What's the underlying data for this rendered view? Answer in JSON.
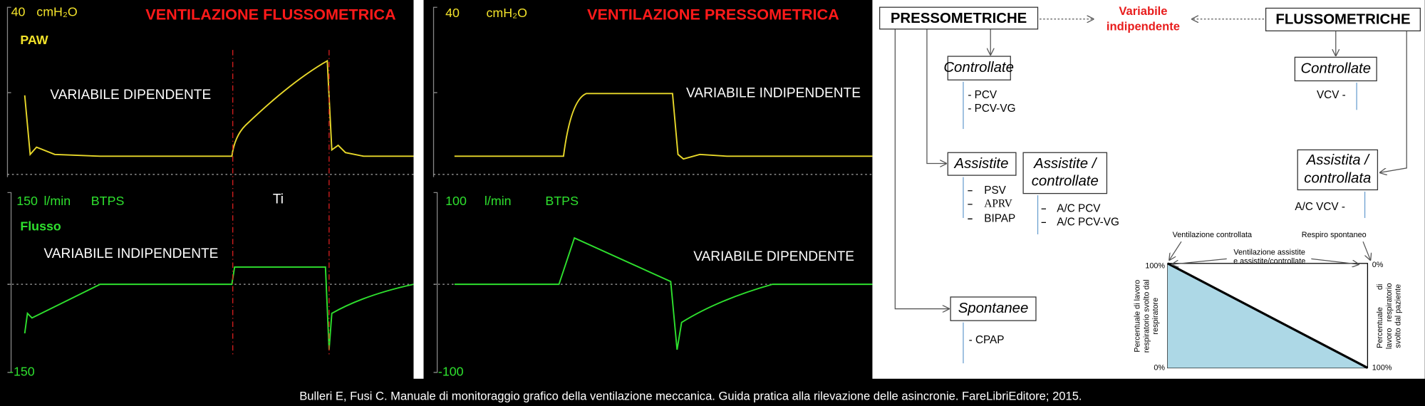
{
  "flow_panel": {
    "pressure_scale": "40",
    "pressure_unit": "cmH₂O",
    "title": "VENTILAZIONE FLUSSOMETRICA",
    "pressure_label": "PAW",
    "pressure_note": "VARIABILE DIPENDENTE",
    "flow_scale": "150",
    "flow_unit": "l/min",
    "flow_ref": "BTPS",
    "flow_label": "Flusso",
    "flow_note": "VARIABILE INDIPENDENTE",
    "ti_label": "Ti",
    "flow_min": "-150"
  },
  "pressure_panel": {
    "pressure_scale": "40",
    "pressure_unit": "cmH₂O",
    "title": "VENTILAZIONE PRESSOMETRICA",
    "pressure_note": "VARIABILE INDIPENDENTE",
    "flow_scale": "100",
    "flow_unit": "l/min",
    "flow_ref": "BTPS",
    "flow_note": "VARIABILE DIPENDENTE",
    "flow_min": "-100"
  },
  "diagram": {
    "root_left": "PRESSOMETRICHE",
    "root_right": "FLUSSOMETRICHE",
    "center_label": [
      "Variabile",
      "indipendente"
    ],
    "left_controllate": {
      "label": "Controllate",
      "items": [
        "- PCV",
        "- PCV-VG"
      ]
    },
    "assistite": {
      "label": "Assistite",
      "items": [
        "PSV",
        "APRV",
        "BIPAP"
      ]
    },
    "assistite_controllate": {
      "label": [
        "Assistite /",
        "controllate"
      ],
      "items": [
        "A/C PCV",
        "A/C PCV-VG"
      ]
    },
    "spontanee": {
      "label": "Spontanee",
      "items": [
        "- CPAP"
      ]
    },
    "right_controllate": {
      "label": "Controllate",
      "items": [
        "VCV -"
      ]
    },
    "assistita_controllata": {
      "label": [
        "Assistita /",
        "controllata"
      ],
      "items": [
        "A/C VCV -"
      ]
    }
  },
  "work_chart": {
    "left_top_label": "Ventilazione controllata",
    "right_top_label": "Respiro spontaneo",
    "middle_label": [
      "Ventilazione assistite",
      "e assistite/controllate"
    ],
    "left_ticks": [
      "100%",
      "0%"
    ],
    "right_ticks": [
      "0%",
      "100%"
    ],
    "left_axis": [
      "Percentuale di lavoro",
      "respiratorio svolto dal",
      "respiratore"
    ],
    "right_axis": [
      "Percentuale        di",
      "lavoro   respiratorio",
      "svolto dal paziente"
    ]
  },
  "caption": "Bulleri E, Fusi C. Manuale di monitoraggio grafico della ventilazione meccanica. Guida pratica alla rilevazione delle asincronie. FareLibriEditore; 2015."
}
